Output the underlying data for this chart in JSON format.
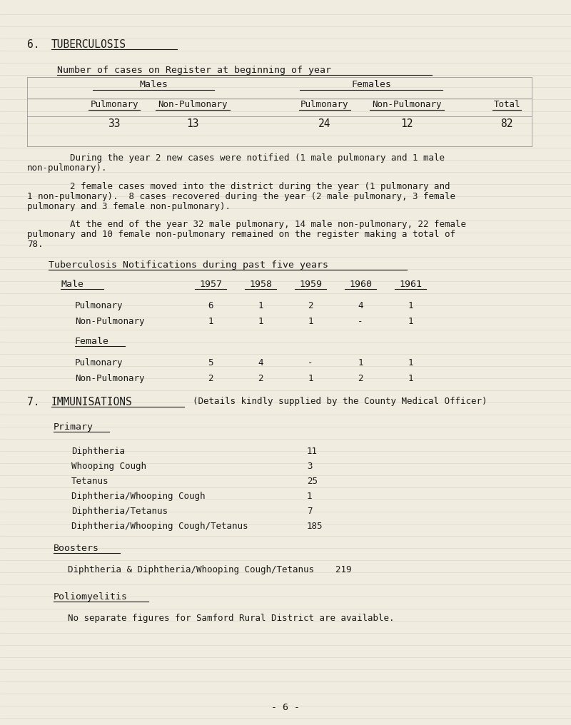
{
  "bg_color": "#f0ece0",
  "text_color": "#1a1a1a",
  "page_width": 8.0,
  "page_height": 10.16,
  "dpi": 100,
  "section6_title_num": "6.",
  "section6_title_word": "TUBERCULOSIS",
  "register_subtitle": "Number of cases on Register at beginning of year",
  "table1_males_header": "Males",
  "table1_females_header": "Females",
  "table1_col_labels": [
    "Pulmonary",
    "Non-Pulmonary",
    "Pulmonary",
    "Non-Pulmonary",
    "Total"
  ],
  "table1_data": [
    "33",
    "13",
    "24",
    "12",
    "82"
  ],
  "para1_indent": "        During the year 2 new cases were notified (1 male pulmonary and 1 male",
  "para1_line2": "non-pulmonary).",
  "para2_indent": "        2 female cases moved into the district during the year (1 pulmonary and",
  "para2_line2": "1 non-pulmonary).  8 cases recovered during the year (2 male pulmonary, 3 female",
  "para2_line3": "pulmonary and 3 female non-pulmonary).",
  "para3_indent": "        At the end of the year 32 male pulmonary, 14 male non-pulmonary, 22 female",
  "para3_line2": "pulmonary and 10 female non-pulmonary remained on the register making a total of",
  "para3_line3": "78.",
  "notif_subtitle": "Tuberculosis Notifications during past five years",
  "notif_col_headers": [
    "1957",
    "1958",
    "1959",
    "1960",
    "1961"
  ],
  "notif_male_label": "Male",
  "notif_male_pulmonary_label": "Pulmonary",
  "notif_male_pulmonary": [
    "6",
    "1",
    "2",
    "4",
    "1"
  ],
  "notif_male_nonpulmonary_label": "Non-Pulmonary",
  "notif_male_nonpulmonary": [
    "1",
    "1",
    "1",
    "-",
    "1"
  ],
  "notif_female_label": "Female",
  "notif_female_pulmonary_label": "Pulmonary",
  "notif_female_pulmonary": [
    "5",
    "4",
    "-",
    "1",
    "1"
  ],
  "notif_female_nonpulmonary_label": "Non-Pulmonary",
  "notif_female_nonpulmonary": [
    "2",
    "2",
    "1",
    "2",
    "1"
  ],
  "section7_num": "7.",
  "section7_word": "IMMUNISATIONS",
  "section7_subtitle": "(Details kindly supplied by the County Medical Officer)",
  "primary_label": "Primary",
  "immunisation_items": [
    [
      "Diphtheria",
      "11"
    ],
    [
      "Whooping Cough",
      "3"
    ],
    [
      "Tetanus",
      "25"
    ],
    [
      "Diphtheria/Whooping Cough",
      "1"
    ],
    [
      "Diphtheria/Tetanus",
      "7"
    ],
    [
      "Diphtheria/Whooping Cough/Tetanus",
      "185"
    ]
  ],
  "boosters_label": "Boosters",
  "boosters_line": "Diphtheria & Diphtheria/Whooping Cough/Tetanus",
  "boosters_value": "219",
  "polio_label": "Poliomyelitis",
  "polio_text": "No separate figures for Samford Rural District are available.",
  "page_number": "- 6 -",
  "grid_line_color": "#d8d4c0",
  "table_line_color": "#999999",
  "underline_color": "#1a1a1a"
}
